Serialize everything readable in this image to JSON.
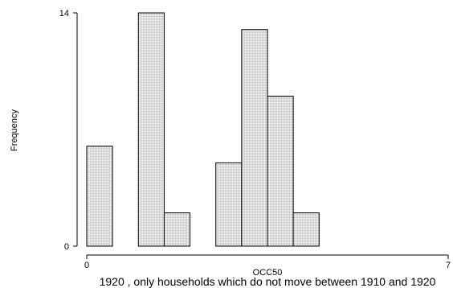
{
  "chart_data": {
    "type": "bar",
    "subtype": "histogram",
    "xlabel": "OCC50",
    "ylabel": "Frequency",
    "caption": "1920 , only households which do not move between 1910 and 1920",
    "xlim": [
      0,
      7
    ],
    "ylim": [
      0,
      14
    ],
    "x_ticks": [
      0,
      7
    ],
    "y_ticks": [
      0,
      14
    ],
    "bin_width": 0.5,
    "bins": [
      {
        "start": 0.0,
        "end": 0.5,
        "value": 6
      },
      {
        "start": 0.5,
        "end": 1.0,
        "value": 0
      },
      {
        "start": 1.0,
        "end": 1.5,
        "value": 14
      },
      {
        "start": 1.5,
        "end": 2.0,
        "value": 2
      },
      {
        "start": 2.0,
        "end": 2.5,
        "value": 0
      },
      {
        "start": 2.5,
        "end": 3.0,
        "value": 5
      },
      {
        "start": 3.0,
        "end": 3.5,
        "value": 13
      },
      {
        "start": 3.5,
        "end": 4.0,
        "value": 9
      },
      {
        "start": 4.0,
        "end": 4.5,
        "value": 2
      }
    ],
    "fill": "light gray stipple",
    "grid": false,
    "legend": "none"
  }
}
